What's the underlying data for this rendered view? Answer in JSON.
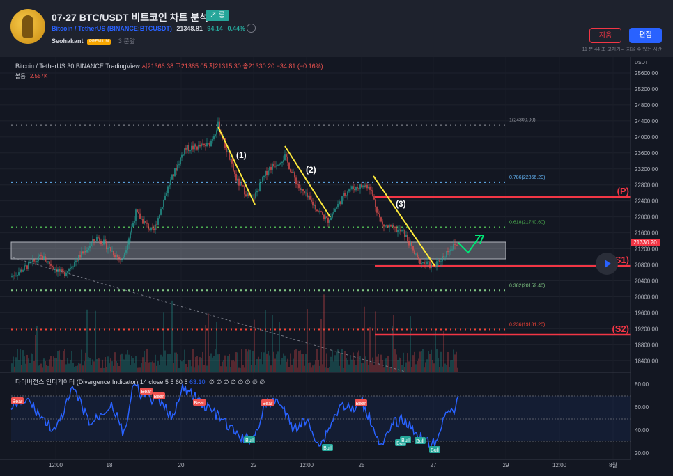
{
  "header": {
    "title": "07-27 BTC/USDT 비트코인 차트 분석",
    "long_badge": "↗ 롱",
    "symbol": "Bitcoin / TetherUS (BINANCE:BTCUSDT)",
    "price": "21348.81",
    "change": "94.14",
    "change_pct": "0.44%",
    "author": "Seohakant",
    "premium": "PREMIUM",
    "time": "3 분앞",
    "delete_label": "지움",
    "edit_label": "편집",
    "note": "11 분 44 초 고치거나 지울 수 있는 시간"
  },
  "legend": {
    "symbol": "Bitcoin / TetherUS",
    "interval": "30",
    "exchange": "BINANCE",
    "source": "TradingView",
    "ohlc": "시21366.38 고21385.05 저21315.30 종21330.20 −34.81 (−0.16%)",
    "volume_label": "볼륨",
    "volume_value": "2.557K"
  },
  "indicator": {
    "label": "다이버전스 인디케이터 (Divergence Indicator)",
    "params": "14 close 5 5 60 5",
    "value": "63.10",
    "zeros": "∅ ∅ ∅ ∅ ∅ ∅ ∅ ∅"
  },
  "price_axis": {
    "unit": "USDT",
    "ticks": [
      "25600.00",
      "25200.00",
      "24800.00",
      "24400.00",
      "24000.00",
      "23600.00",
      "23200.00",
      "22800.00",
      "22400.00",
      "22000.00",
      "21600.00",
      "21200.00",
      "20800.00",
      "20400.00",
      "20000.00",
      "19600.00",
      "19200.00",
      "18800.00",
      "18400.00"
    ],
    "current": "21330.20"
  },
  "ind_axis": {
    "ticks": [
      "80.00",
      "60.00",
      "40.00",
      "20.00"
    ]
  },
  "time_axis": {
    "ticks": [
      "12:00",
      "18",
      "20",
      "22",
      "12:00",
      "25",
      "27",
      "29",
      "12:00",
      "8월"
    ]
  },
  "fib_levels": [
    {
      "label": "1(24300.00)",
      "value": 24300,
      "color": "#9598a1"
    },
    {
      "label": "0.786(22866.20)",
      "value": 22866.2,
      "color": "#64b5f6"
    },
    {
      "label": "0.618(21740.60)",
      "value": 21740.6,
      "color": "#4caf50"
    },
    {
      "label": "0.382(20159.40)",
      "value": 20159.4,
      "color": "#81c784"
    },
    {
      "label": "0.236(19181.20)",
      "value": 19181.2,
      "color": "#f44336"
    }
  ],
  "levels": [
    {
      "label": "(P)",
      "value": 22500
    },
    {
      "label": "(S1)",
      "value": 20770
    },
    {
      "label": "(S2)",
      "value": 19050
    }
  ],
  "wave_labels": [
    "(1)",
    "(2)",
    "(3)"
  ],
  "signals": {
    "bear": [
      "Bear",
      "Bear",
      "Bear",
      "Bear",
      "Bear",
      "Bear"
    ],
    "bull": [
      "Bull",
      "Bull",
      "Bull",
      "Bull",
      "Bull",
      "Bull"
    ]
  },
  "colors": {
    "up": "#26a69a",
    "down": "#ef5350",
    "accent": "#2962ff",
    "trend": "#ffeb3b",
    "arrow": "#00e676",
    "level": "#f23645"
  }
}
